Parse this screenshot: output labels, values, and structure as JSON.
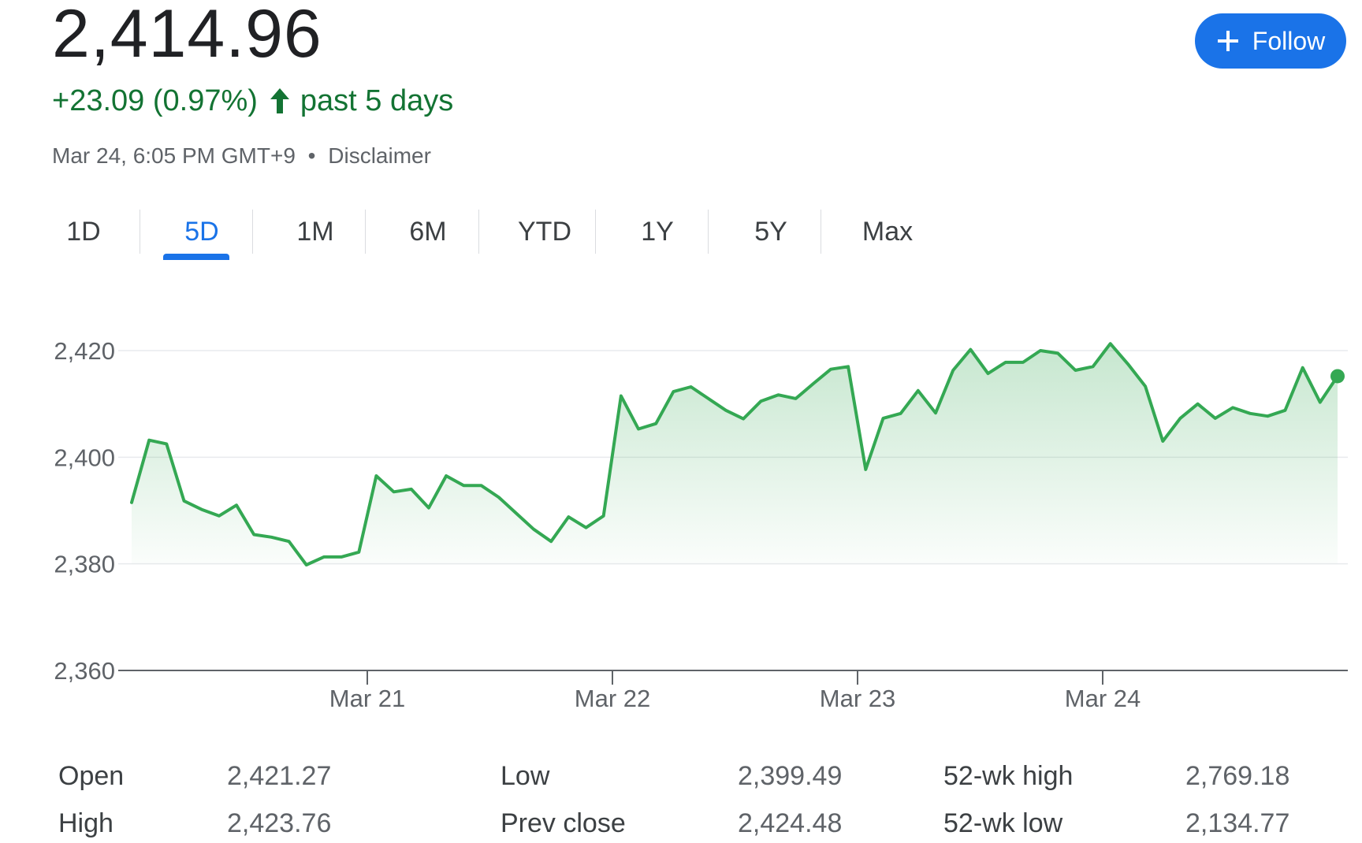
{
  "quote": {
    "price": "2,414.96",
    "change": "+23.09 (0.97%)",
    "change_period": "past 5 days",
    "change_color": "#137333",
    "timestamp": "Mar 24, 6:05 PM GMT+9",
    "separator": "•",
    "disclaimer": "Disclaimer"
  },
  "follow_button": {
    "label": "Follow",
    "icon": "plus-icon",
    "color": "#1a73e8"
  },
  "tabs": [
    {
      "label": "1D",
      "active": false
    },
    {
      "label": "5D",
      "active": true
    },
    {
      "label": "1M",
      "active": false
    },
    {
      "label": "6M",
      "active": false
    },
    {
      "label": "YTD",
      "active": false
    },
    {
      "label": "1Y",
      "active": false
    },
    {
      "label": "5Y",
      "active": false
    },
    {
      "label": "Max",
      "active": false
    }
  ],
  "chart_data": {
    "type": "area",
    "line_color": "#34a853",
    "x_ticks": [
      "Mar 21",
      "Mar 22",
      "Mar 23",
      "Mar 24"
    ],
    "y_ticks": [
      "2,420",
      "2,400",
      "2,380",
      "2,360"
    ],
    "ylim": [
      2360,
      2420
    ],
    "grid": true,
    "values": [
      2391.5,
      2403.2,
      2402.5,
      2391.8,
      2390.2,
      2389.0,
      2391.0,
      2385.5,
      2385.0,
      2384.2,
      2379.8,
      2381.3,
      2381.3,
      2382.2,
      2396.5,
      2393.5,
      2394.0,
      2390.5,
      2396.5,
      2394.7,
      2394.7,
      2392.5,
      2389.5,
      2386.5,
      2384.2,
      2388.8,
      2386.8,
      2389.0,
      2411.5,
      2405.3,
      2406.3,
      2412.3,
      2413.2,
      2411.0,
      2408.8,
      2407.2,
      2410.5,
      2411.7,
      2411.0,
      2413.8,
      2416.5,
      2417.0,
      2397.7,
      2407.3,
      2408.2,
      2412.5,
      2408.3,
      2416.3,
      2420.2,
      2415.7,
      2417.8,
      2417.8,
      2420.0,
      2419.5,
      2416.3,
      2417.0,
      2421.3,
      2417.5,
      2413.3,
      2403.0,
      2407.3,
      2410.0,
      2407.3,
      2409.3,
      2408.2,
      2407.7,
      2408.8,
      2416.8,
      2410.3,
      2415.2
    ],
    "current_value": 2414.96
  },
  "stats": [
    {
      "label": "Open",
      "value": "2,421.27"
    },
    {
      "label": "High",
      "value": "2,423.76"
    },
    {
      "label": "Low",
      "value": "2,399.49"
    },
    {
      "label": "Prev close",
      "value": "2,424.48"
    },
    {
      "label": "52-wk high",
      "value": "2,769.18"
    },
    {
      "label": "52-wk low",
      "value": "2,134.77"
    }
  ]
}
